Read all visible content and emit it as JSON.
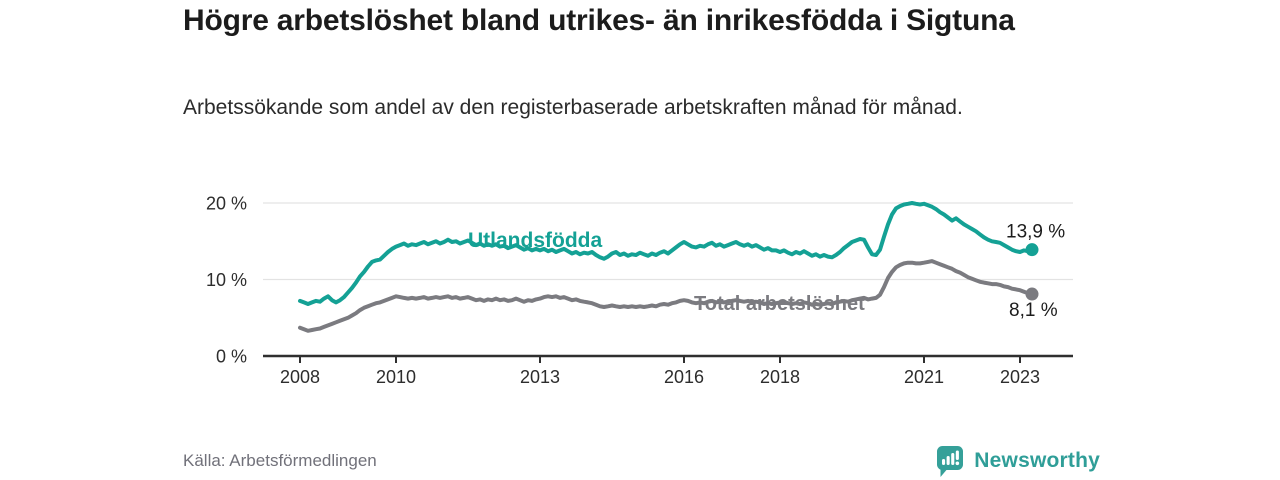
{
  "header": {
    "title": "Högre arbetslöshet bland utrikes- än inrikesfödda i Sigtuna",
    "subtitle": "Arbetssökande som andel av den registerbaserade arbetskraften månad för månad."
  },
  "footer": {
    "source": "Källa: Arbetsförmedlingen",
    "brand_name": "Newsworthy"
  },
  "colors": {
    "series_foreign_born": "#14a195",
    "series_total": "#7b7b80",
    "brand_teal": "#35a099",
    "axis": "#2f2f2f",
    "grid": "#e3e3e3",
    "tick_text": "#2d2d2d",
    "end_label_text": "#1c1c1c"
  },
  "chart_data": {
    "type": "line",
    "title": "Högre arbetslöshet bland utrikes- än inrikesfödda i Sigtuna",
    "subtitle": "Arbetssökande som andel av den registerbaserade arbetskraften månad för månad.",
    "unit": "%",
    "frequency": "monthly",
    "x_start": {
      "year": 2008,
      "month": 1
    },
    "x_end": {
      "year": 2023,
      "month": 4
    },
    "x_ticks": [
      2008,
      2010,
      2013,
      2016,
      2018,
      2021,
      2023
    ],
    "y_ticks": [
      {
        "value": 0,
        "label": "0 %"
      },
      {
        "value": 10,
        "label": "10 %"
      },
      {
        "value": 20,
        "label": "20 %"
      }
    ],
    "ylim": [
      0,
      21.5
    ],
    "grid": "horizontal-only",
    "legend": "inline-series-labels",
    "series": [
      {
        "id": "total",
        "name": "Total arbetslöshet",
        "color": "#7b7b80",
        "end_value": 8.1,
        "end_value_label": "8,1 %",
        "values": [
          3.7,
          3.5,
          3.3,
          3.4,
          3.5,
          3.6,
          3.8,
          4.0,
          4.2,
          4.4,
          4.6,
          4.8,
          5.0,
          5.3,
          5.6,
          6.0,
          6.3,
          6.5,
          6.7,
          6.9,
          7.0,
          7.2,
          7.4,
          7.6,
          7.8,
          7.7,
          7.6,
          7.5,
          7.6,
          7.5,
          7.6,
          7.7,
          7.5,
          7.6,
          7.7,
          7.6,
          7.7,
          7.8,
          7.6,
          7.7,
          7.5,
          7.6,
          7.7,
          7.5,
          7.3,
          7.4,
          7.2,
          7.4,
          7.3,
          7.5,
          7.3,
          7.4,
          7.2,
          7.3,
          7.5,
          7.3,
          7.1,
          7.3,
          7.2,
          7.4,
          7.5,
          7.7,
          7.8,
          7.7,
          7.8,
          7.6,
          7.7,
          7.5,
          7.3,
          7.4,
          7.2,
          7.1,
          7.0,
          6.9,
          6.7,
          6.5,
          6.4,
          6.5,
          6.6,
          6.5,
          6.4,
          6.5,
          6.4,
          6.5,
          6.4,
          6.5,
          6.4,
          6.5,
          6.6,
          6.5,
          6.7,
          6.8,
          6.7,
          6.9,
          7.0,
          7.2,
          7.3,
          7.2,
          7.0,
          6.9,
          7.0,
          6.9,
          7.1,
          7.2,
          7.0,
          7.1,
          7.0,
          7.1,
          7.2,
          7.3,
          7.2,
          7.1,
          7.2,
          7.0,
          7.1,
          7.0,
          6.8,
          6.9,
          6.8,
          6.9,
          7.0,
          7.1,
          6.9,
          6.8,
          6.9,
          6.8,
          7.0,
          6.9,
          6.7,
          6.8,
          6.7,
          6.8,
          6.9,
          6.8,
          7.0,
          7.1,
          7.2,
          7.1,
          7.3,
          7.4,
          7.5,
          7.6,
          7.4,
          7.5,
          7.6,
          8.0,
          9.0,
          10.2,
          11.0,
          11.6,
          11.9,
          12.1,
          12.2,
          12.2,
          12.1,
          12.1,
          12.2,
          12.3,
          12.4,
          12.2,
          12.0,
          11.8,
          11.6,
          11.4,
          11.1,
          10.9,
          10.6,
          10.3,
          10.1,
          9.9,
          9.7,
          9.6,
          9.5,
          9.4,
          9.4,
          9.3,
          9.1,
          9.0,
          8.8,
          8.7,
          8.6,
          8.4,
          8.2,
          8.1
        ]
      },
      {
        "id": "foreign-born",
        "name": "Utlandsfödda",
        "color": "#14a195",
        "end_value": 13.9,
        "end_value_label": "13,9 %",
        "values": [
          7.2,
          7.0,
          6.8,
          7.0,
          7.2,
          7.1,
          7.5,
          7.8,
          7.3,
          7.0,
          7.3,
          7.7,
          8.3,
          8.9,
          9.6,
          10.4,
          11.0,
          11.7,
          12.3,
          12.5,
          12.6,
          13.1,
          13.6,
          14.0,
          14.3,
          14.5,
          14.7,
          14.4,
          14.6,
          14.5,
          14.7,
          14.9,
          14.6,
          14.8,
          15.0,
          14.7,
          14.9,
          15.2,
          14.9,
          15.0,
          14.7,
          14.9,
          15.1,
          14.8,
          14.5,
          14.7,
          14.4,
          14.6,
          14.4,
          14.6,
          14.3,
          14.4,
          14.1,
          14.3,
          14.5,
          14.2,
          13.9,
          14.1,
          13.8,
          14.0,
          13.8,
          14.0,
          13.7,
          13.9,
          13.6,
          13.8,
          14.0,
          13.7,
          13.4,
          13.6,
          13.3,
          13.5,
          13.4,
          13.6,
          13.2,
          12.9,
          12.7,
          13.0,
          13.4,
          13.6,
          13.2,
          13.4,
          13.1,
          13.3,
          13.2,
          13.5,
          13.3,
          13.1,
          13.4,
          13.2,
          13.5,
          13.7,
          13.4,
          13.8,
          14.2,
          14.6,
          14.9,
          14.6,
          14.3,
          14.2,
          14.4,
          14.3,
          14.6,
          14.8,
          14.4,
          14.6,
          14.3,
          14.5,
          14.7,
          14.9,
          14.6,
          14.4,
          14.6,
          14.3,
          14.5,
          14.2,
          13.9,
          14.1,
          13.8,
          13.8,
          13.6,
          13.8,
          13.5,
          13.3,
          13.6,
          13.4,
          13.7,
          13.4,
          13.1,
          13.3,
          13.0,
          13.2,
          13.0,
          12.9,
          13.2,
          13.6,
          14.1,
          14.5,
          14.9,
          15.1,
          15.3,
          15.2,
          14.2,
          13.3,
          13.2,
          13.9,
          15.6,
          17.2,
          18.5,
          19.3,
          19.6,
          19.8,
          19.9,
          20.0,
          19.9,
          19.8,
          19.9,
          19.7,
          19.5,
          19.2,
          18.8,
          18.5,
          18.1,
          17.7,
          18.0,
          17.6,
          17.2,
          16.9,
          16.6,
          16.3,
          15.9,
          15.5,
          15.2,
          15.0,
          14.9,
          14.8,
          14.5,
          14.2,
          13.9,
          13.7,
          13.6,
          13.8,
          13.7,
          13.9
        ]
      }
    ]
  }
}
